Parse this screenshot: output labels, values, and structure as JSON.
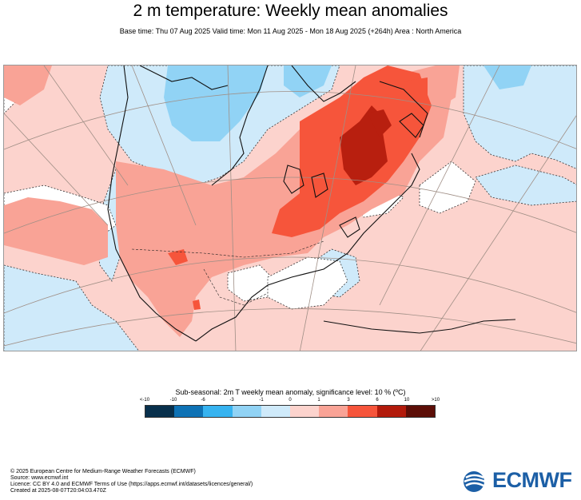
{
  "title": "2 m temperature: Weekly mean anomalies",
  "subtitle": "Base time: Thu 07 Aug 2025 Valid time: Mon 11 Aug 2025 - Mon 18 Aug 2025 (+264h) Area : North America",
  "colorbar": {
    "title": "Sub-seasonal: 2m T weekly mean anomaly, significance level: 10 % (ºC)",
    "ticks": [
      "<-10",
      "-10",
      "-6",
      "-3",
      "-1",
      "0",
      "1",
      "3",
      "6",
      "10",
      ">10"
    ],
    "colors": [
      "#08304c",
      "#0e72b5",
      "#36b3f0",
      "#91d3f5",
      "#cfeafa",
      "#fcd3cd",
      "#f9a396",
      "#f6553b",
      "#b21a0b",
      "#5c0e07"
    ]
  },
  "footer": {
    "line1": "© 2025 European Centre for Medium-Range Weather Forecasts (ECMWF)",
    "line2": "Source: www.ecmwf.int",
    "line3": "Licence: CC BY 4.0 and ECMWF Terms of Use (https://apps.ecmwf.int/datasets/licences/general/)",
    "line4": "Created at 2025-08-07T20:04:03.470Z"
  },
  "logo": {
    "text": "ECMWF",
    "color": "#1c5fa6"
  }
}
